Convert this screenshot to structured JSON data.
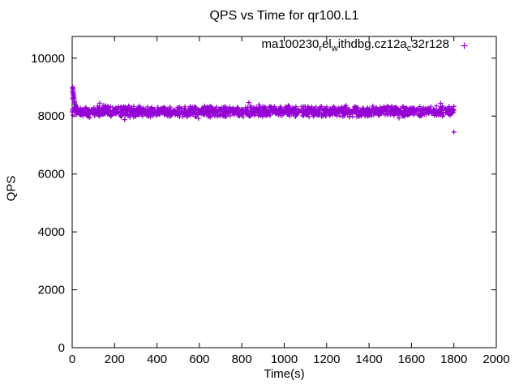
{
  "chart_data": {
    "type": "scatter",
    "title": "QPS vs Time for qr100.L1",
    "xlabel": "Time(s)",
    "ylabel": "QPS",
    "xlim": [
      0,
      2000
    ],
    "ylim": [
      0,
      10750
    ],
    "x_ticks": [
      0,
      200,
      400,
      600,
      800,
      1000,
      1200,
      1400,
      1600,
      1800,
      2000
    ],
    "y_ticks": [
      0,
      2000,
      4000,
      6000,
      8000,
      10000
    ],
    "grid": false,
    "background": "#ffffff",
    "axis_color": "#000000",
    "legend_position": "top-right-inside",
    "series": [
      {
        "name": "ma100230_rel_withdbg.cz12a_c32r128",
        "legend_rendered": [
          {
            "text": "ma100230",
            "sub": false
          },
          {
            "text": "r",
            "sub": true
          },
          {
            "text": "el",
            "sub": false
          },
          {
            "text": "w",
            "sub": true
          },
          {
            "text": "ithdbg.cz12a",
            "sub": false
          },
          {
            "text": "c",
            "sub": true
          },
          {
            "text": "32r128",
            "sub": false
          }
        ],
        "color": "#9400d3",
        "marker": "plus",
        "steady_state": {
          "t_start": 0,
          "t_end": 1800,
          "mean_qps": 8165,
          "jitter_qps": 130,
          "extra_jitter_qps": 120,
          "extra_fraction": 0.08,
          "n_points": 1500
        },
        "warmup_points": [
          [
            1,
            8850
          ],
          [
            1,
            8600
          ],
          [
            2,
            8960
          ],
          [
            3,
            9000
          ],
          [
            3,
            8870
          ],
          [
            4,
            8930
          ],
          [
            4,
            8780
          ],
          [
            5,
            8860
          ],
          [
            5,
            8700
          ],
          [
            6,
            8800
          ],
          [
            6,
            8640
          ],
          [
            7,
            8740
          ],
          [
            8,
            8690
          ],
          [
            8,
            8560
          ],
          [
            9,
            8620
          ],
          [
            10,
            8560
          ],
          [
            11,
            8500
          ],
          [
            12,
            8460
          ],
          [
            14,
            8420
          ],
          [
            16,
            8380
          ],
          [
            18,
            8340
          ],
          [
            20,
            8310
          ]
        ],
        "outlier_points": [
          [
            1800,
            7450
          ],
          [
            1800,
            8330
          ]
        ]
      }
    ]
  }
}
